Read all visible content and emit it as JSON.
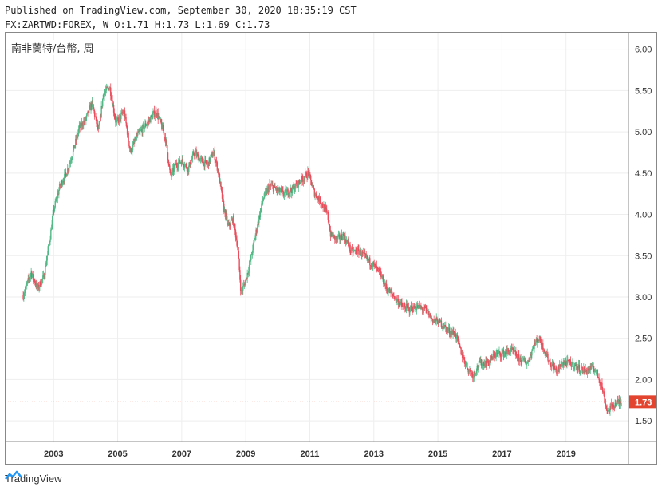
{
  "header": {
    "published": "Published on TradingView.com, September 30, 2020 18:35:19 CST",
    "ohlc": "FX:ZARTWD:FOREX, W O:1.71 H:1.73 L:1.69 C:1.73"
  },
  "symbol_label": "南非蘭特/台幣, 周",
  "brand": {
    "name": "TradingView",
    "icon": "tradingview-logo-icon"
  },
  "colors": {
    "up": "#53b987",
    "down": "#eb4d5c",
    "price_line": "#f0513a",
    "price_tag": "#e2442f",
    "grid": "#eeeeee"
  },
  "chart_data": {
    "type": "candlestick",
    "timeframe": "W",
    "ylim": [
      1.25,
      6.2
    ],
    "y_ticks": [
      6.0,
      5.5,
      5.0,
      4.5,
      4.0,
      3.5,
      3.0,
      2.5,
      2.0,
      1.5
    ],
    "y_tick_labels": [
      "6.00",
      "5.50",
      "5.00",
      "4.50",
      "4.00",
      "3.50",
      "3.00",
      "2.50",
      "2.00",
      "1.50"
    ],
    "xlim": [
      2001.5,
      2020.95
    ],
    "x_ticks": [
      2003,
      2005,
      2007,
      2009,
      2011,
      2013,
      2015,
      2017,
      2019
    ],
    "x_tick_labels": [
      "2003",
      "2005",
      "2007",
      "2009",
      "2011",
      "2013",
      "2015",
      "2017",
      "2019"
    ],
    "last_price": 1.73,
    "last_price_label": "1.73",
    "price_path": [
      [
        2002.05,
        3.02
      ],
      [
        2002.3,
        3.3
      ],
      [
        2002.5,
        3.1
      ],
      [
        2002.7,
        3.25
      ],
      [
        2002.9,
        3.75
      ],
      [
        2003.0,
        4.05
      ],
      [
        2003.2,
        4.35
      ],
      [
        2003.4,
        4.5
      ],
      [
        2003.6,
        4.75
      ],
      [
        2003.8,
        5.05
      ],
      [
        2004.0,
        5.15
      ],
      [
        2004.2,
        5.35
      ],
      [
        2004.4,
        5.0
      ],
      [
        2004.55,
        5.45
      ],
      [
        2004.75,
        5.55
      ],
      [
        2004.95,
        5.1
      ],
      [
        2005.2,
        5.25
      ],
      [
        2005.4,
        4.75
      ],
      [
        2005.6,
        4.95
      ],
      [
        2005.8,
        5.05
      ],
      [
        2006.0,
        5.15
      ],
      [
        2006.2,
        5.25
      ],
      [
        2006.35,
        5.1
      ],
      [
        2006.5,
        4.9
      ],
      [
        2006.65,
        4.45
      ],
      [
        2006.8,
        4.6
      ],
      [
        2007.0,
        4.65
      ],
      [
        2007.2,
        4.55
      ],
      [
        2007.4,
        4.75
      ],
      [
        2007.6,
        4.65
      ],
      [
        2007.8,
        4.6
      ],
      [
        2008.0,
        4.75
      ],
      [
        2008.15,
        4.5
      ],
      [
        2008.3,
        4.1
      ],
      [
        2008.45,
        3.85
      ],
      [
        2008.6,
        3.95
      ],
      [
        2008.75,
        3.6
      ],
      [
        2008.85,
        3.05
      ],
      [
        2009.0,
        3.2
      ],
      [
        2009.15,
        3.45
      ],
      [
        2009.35,
        3.85
      ],
      [
        2009.55,
        4.2
      ],
      [
        2009.75,
        4.35
      ],
      [
        2009.95,
        4.3
      ],
      [
        2010.2,
        4.25
      ],
      [
        2010.45,
        4.3
      ],
      [
        2010.7,
        4.4
      ],
      [
        2010.95,
        4.5
      ],
      [
        2011.15,
        4.25
      ],
      [
        2011.35,
        4.15
      ],
      [
        2011.55,
        4.0
      ],
      [
        2011.65,
        3.75
      ],
      [
        2011.85,
        3.7
      ],
      [
        2012.05,
        3.75
      ],
      [
        2012.3,
        3.55
      ],
      [
        2012.55,
        3.55
      ],
      [
        2012.8,
        3.45
      ],
      [
        2013.0,
        3.38
      ],
      [
        2013.2,
        3.28
      ],
      [
        2013.4,
        3.1
      ],
      [
        2013.65,
        3.0
      ],
      [
        2013.85,
        2.9
      ],
      [
        2014.1,
        2.85
      ],
      [
        2014.35,
        2.88
      ],
      [
        2014.6,
        2.85
      ],
      [
        2014.85,
        2.72
      ],
      [
        2015.05,
        2.7
      ],
      [
        2015.3,
        2.6
      ],
      [
        2015.55,
        2.55
      ],
      [
        2015.75,
        2.3
      ],
      [
        2015.95,
        2.12
      ],
      [
        2016.1,
        2.05
      ],
      [
        2016.3,
        2.2
      ],
      [
        2016.55,
        2.2
      ],
      [
        2016.8,
        2.3
      ],
      [
        2017.05,
        2.32
      ],
      [
        2017.3,
        2.35
      ],
      [
        2017.55,
        2.25
      ],
      [
        2017.8,
        2.2
      ],
      [
        2018.0,
        2.42
      ],
      [
        2018.15,
        2.5
      ],
      [
        2018.3,
        2.38
      ],
      [
        2018.5,
        2.2
      ],
      [
        2018.7,
        2.1
      ],
      [
        2018.9,
        2.2
      ],
      [
        2019.1,
        2.2
      ],
      [
        2019.35,
        2.15
      ],
      [
        2019.6,
        2.1
      ],
      [
        2019.85,
        2.15
      ],
      [
        2020.0,
        2.05
      ],
      [
        2020.12,
        1.92
      ],
      [
        2020.22,
        1.72
      ],
      [
        2020.3,
        1.62
      ],
      [
        2020.45,
        1.68
      ],
      [
        2020.6,
        1.72
      ],
      [
        2020.74,
        1.73
      ]
    ]
  }
}
